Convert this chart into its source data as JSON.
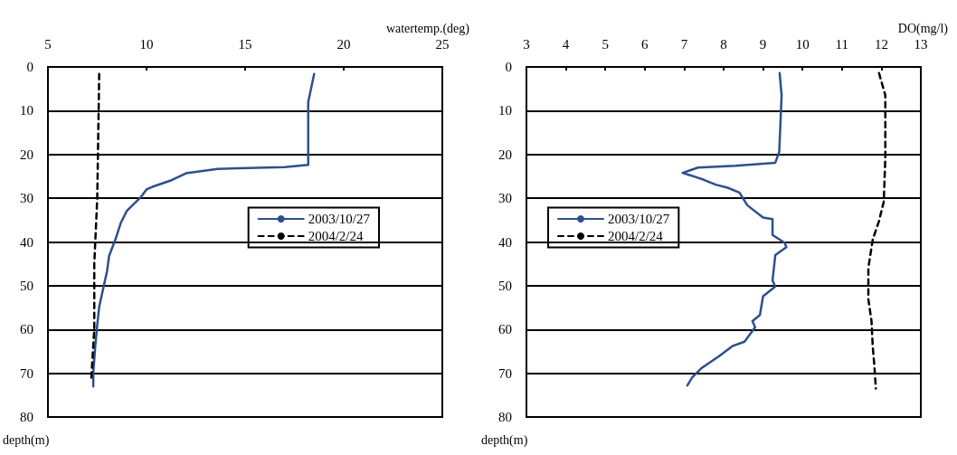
{
  "chart_data": [
    {
      "type": "line",
      "xlabel": "watertemp.(deg)",
      "ylabel": "depth(m)",
      "xlim": [
        5,
        25
      ],
      "xticks": [
        5,
        10,
        15,
        20,
        25
      ],
      "ylim": [
        80,
        0
      ],
      "yticks": [
        0,
        10,
        20,
        30,
        40,
        50,
        60,
        70,
        80
      ],
      "grid": "y",
      "legend": "right",
      "series": [
        {
          "name": "2003/10/27",
          "color": "#2e4f8c",
          "line_style": "solid",
          "x": [
            18.5,
            18.2,
            18.2,
            17.0,
            13.6,
            12.0,
            11.2,
            10.3,
            10.0,
            9.7,
            9.0,
            8.7,
            8.4,
            8.1,
            8.0,
            7.8,
            7.6,
            7.5,
            7.4,
            7.3,
            7.3
          ],
          "values": [
            1.6,
            8,
            22.4,
            22.9,
            23.3,
            24.3,
            26,
            27.4,
            28,
            29.8,
            32.9,
            35.6,
            39.7,
            43.2,
            46.6,
            50.7,
            54.8,
            59,
            63.8,
            69.9,
            73
          ]
        },
        {
          "name": "2004/2/24",
          "color": "#000000",
          "line_style": "dashed",
          "x": [
            7.6,
            7.5,
            7.35,
            7.35,
            7.2
          ],
          "values": [
            1.6,
            30,
            45,
            60,
            71
          ]
        }
      ]
    },
    {
      "type": "line",
      "xlabel": "DO(mg/l)",
      "ylabel": "depth(m)",
      "xlim": [
        3,
        13
      ],
      "xticks": [
        3,
        4,
        5,
        6,
        7,
        8,
        9,
        10,
        11,
        12,
        13
      ],
      "ylim": [
        80,
        0
      ],
      "yticks": [
        0,
        10,
        20,
        30,
        40,
        50,
        60,
        70,
        80
      ],
      "grid": "y",
      "legend": "left",
      "series": [
        {
          "name": "2003/10/27",
          "color": "#2e4f8c",
          "line_style": "solid",
          "x": [
            9.42,
            9.47,
            9.41,
            9.31,
            8.3,
            7.35,
            6.96,
            7.27,
            7.5,
            7.8,
            8.1,
            8.4,
            8.6,
            9.0,
            9.24,
            9.24,
            9.55,
            9.59,
            9.31,
            9.24,
            9.31,
            9.0,
            8.92,
            8.73,
            8.8,
            8.53,
            8.22,
            7.9,
            7.43,
            7.2,
            7.08
          ],
          "values": [
            1.4,
            6.5,
            19.4,
            21.9,
            22.6,
            23,
            24.2,
            25.1,
            25.8,
            26.9,
            27.6,
            28.7,
            31.6,
            34.4,
            34.8,
            38.4,
            40.2,
            41.2,
            43,
            48.8,
            50.2,
            52.4,
            56.7,
            58.1,
            59.5,
            62.8,
            63.8,
            66,
            68.9,
            71,
            72.8
          ]
        },
        {
          "name": "2004/2/24",
          "color": "#000000",
          "line_style": "dashed",
          "x": [
            11.94,
            12.1,
            12.1,
            12.06,
            11.94,
            11.78,
            11.67,
            11.67,
            11.75,
            11.78,
            11.82,
            11.86
          ],
          "values": [
            1.4,
            6.5,
            20.8,
            30.8,
            35.2,
            39.5,
            45.9,
            53.1,
            58.1,
            63.8,
            68,
            73.5
          ]
        }
      ]
    }
  ]
}
